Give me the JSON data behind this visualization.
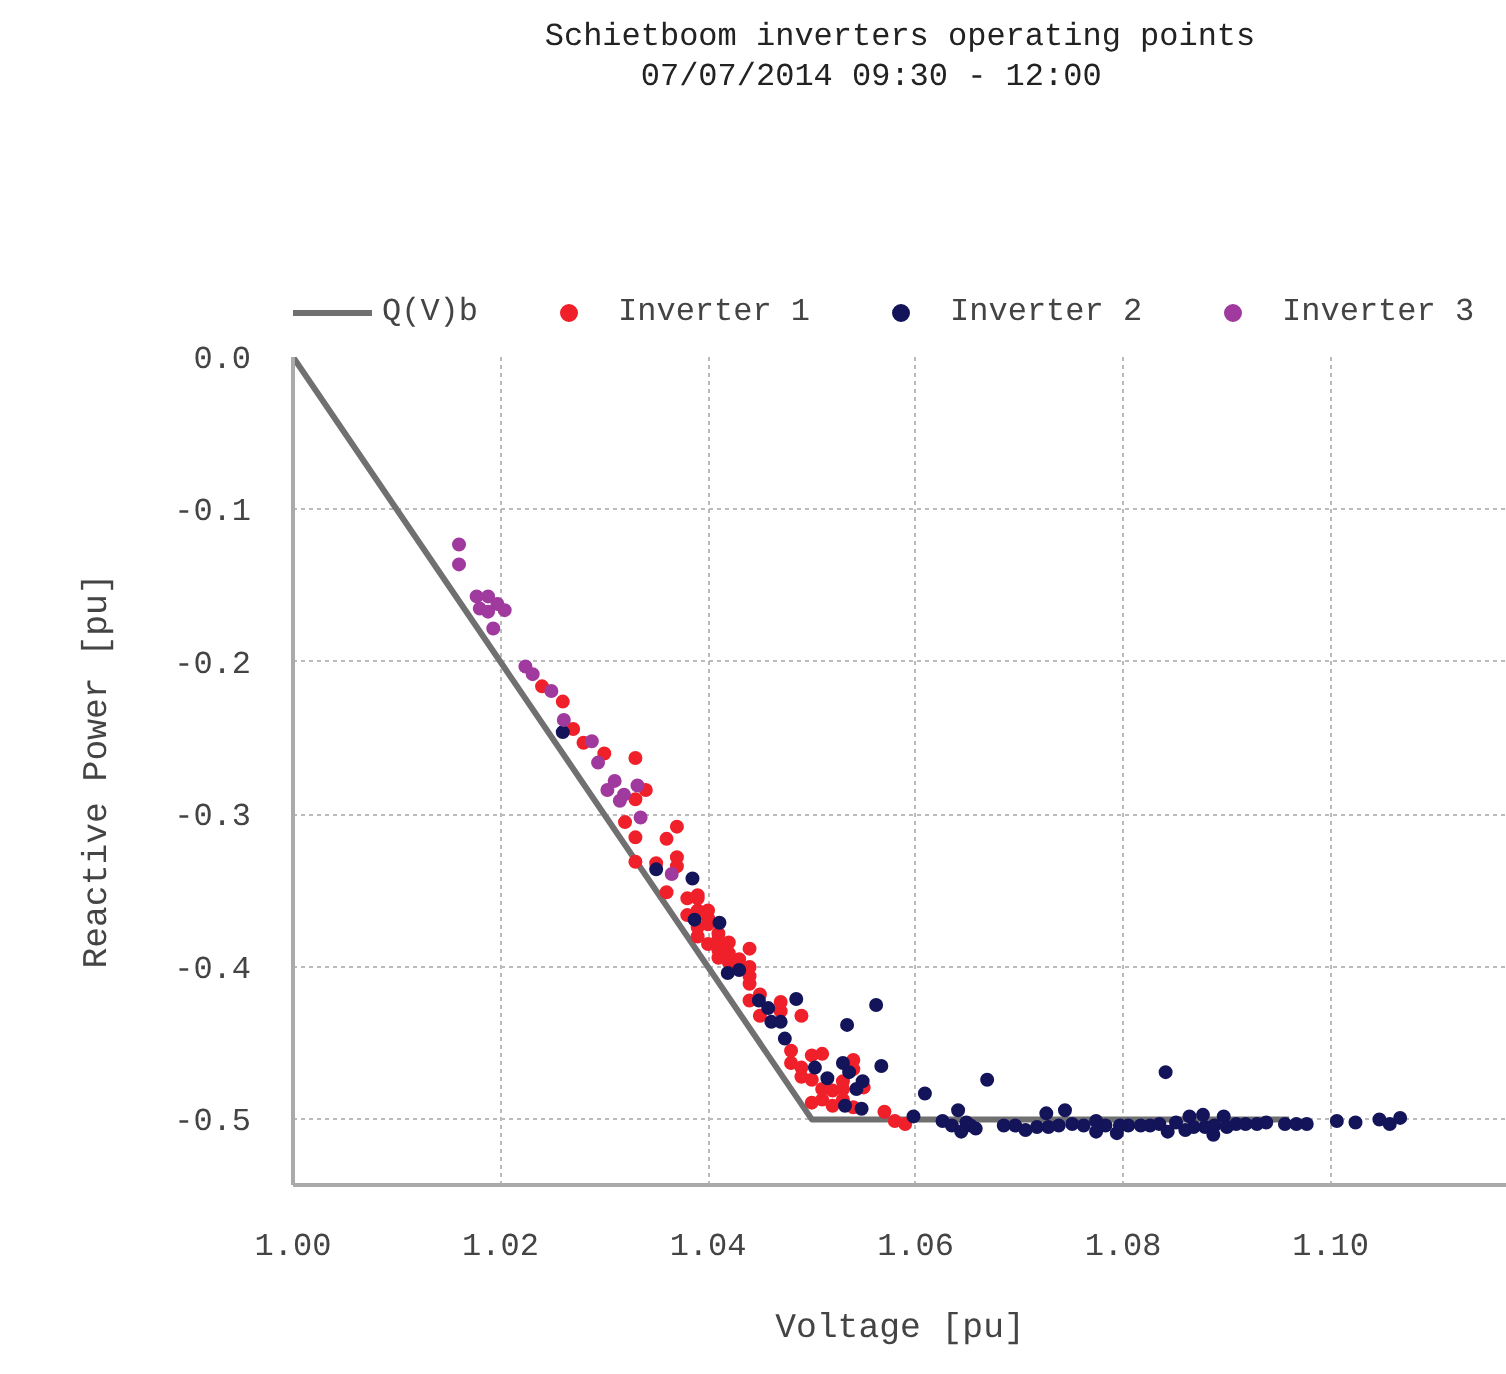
{
  "chart_data": {
    "type": "scatter",
    "title": "Schietboom inverters operating points",
    "subtitle": "07/07/2014    09:30 - 12:00",
    "xlabel": "Voltage [pu]",
    "ylabel": "Reactive Power [pu]",
    "xlim": [
      1.0,
      1.117
    ],
    "ylim": [
      -0.543,
      0.0
    ],
    "xticks": [
      {
        "value": 1.0,
        "label": "1.00"
      },
      {
        "value": 1.02,
        "label": "1.02"
      },
      {
        "value": 1.04,
        "label": "1.04"
      },
      {
        "value": 1.06,
        "label": "1.06"
      },
      {
        "value": 1.08,
        "label": "1.08"
      },
      {
        "value": 1.1,
        "label": "1.10"
      }
    ],
    "yticks": [
      {
        "value": 0.0,
        "label": "0.0"
      },
      -0.1,
      -0.2,
      -0.3,
      -0.4,
      -0.5
    ],
    "grid": true,
    "legend": "top",
    "marker": "circle",
    "series": [
      {
        "name": "Q(V)b",
        "type": "line",
        "color": "#707070",
        "marker": "none",
        "x": [
          1.0,
          1.05,
          1.096
        ],
        "values": [
          0.0,
          -0.5,
          -0.5
        ]
      },
      {
        "name": "Inverter 1",
        "color": "#f0202a",
        "x": [
          1.024,
          1.026,
          1.027,
          1.028,
          1.03,
          1.033,
          1.034,
          1.033,
          1.032,
          1.033,
          1.036,
          1.037,
          1.033,
          1.035,
          1.037,
          1.037,
          1.036,
          1.038,
          1.039,
          1.039,
          1.038,
          1.039,
          1.04,
          1.04,
          1.04,
          1.039,
          1.039,
          1.041,
          1.04,
          1.041,
          1.042,
          1.044,
          1.041,
          1.042,
          1.041,
          1.043,
          1.042,
          1.044,
          1.044,
          1.044,
          1.045,
          1.044,
          1.047,
          1.047,
          1.045,
          1.049,
          1.048,
          1.048,
          1.049,
          1.05,
          1.051,
          1.049,
          1.05,
          1.053,
          1.054,
          1.054,
          1.051,
          1.052,
          1.053,
          1.055,
          1.051,
          1.052,
          1.053,
          1.05,
          1.054,
          1.057,
          1.058,
          1.059
        ],
        "values": [
          -0.216,
          -0.226,
          -0.244,
          -0.253,
          -0.26,
          -0.263,
          -0.284,
          -0.29,
          -0.305,
          -0.315,
          -0.316,
          -0.308,
          -0.331,
          -0.332,
          -0.328,
          -0.334,
          -0.351,
          -0.355,
          -0.353,
          -0.355,
          -0.366,
          -0.363,
          -0.363,
          -0.368,
          -0.372,
          -0.374,
          -0.38,
          -0.378,
          -0.385,
          -0.382,
          -0.384,
          -0.388,
          -0.389,
          -0.391,
          -0.394,
          -0.395,
          -0.397,
          -0.4,
          -0.406,
          -0.411,
          -0.418,
          -0.422,
          -0.423,
          -0.429,
          -0.432,
          -0.432,
          -0.455,
          -0.463,
          -0.466,
          -0.458,
          -0.457,
          -0.472,
          -0.474,
          -0.475,
          -0.461,
          -0.467,
          -0.48,
          -0.481,
          -0.48,
          -0.479,
          -0.487,
          -0.491,
          -0.487,
          -0.489,
          -0.492,
          -0.495,
          -0.501,
          -0.503
        ]
      },
      {
        "name": "Inverter 2",
        "color": "#14145a",
        "x": [
          1.026,
          1.035,
          1.0385,
          1.0387,
          1.0411,
          1.0419,
          1.043,
          1.0449,
          1.0458,
          1.0461,
          1.047,
          1.0485,
          1.0474,
          1.0562,
          1.0534,
          1.053,
          1.0536,
          1.0515,
          1.0503,
          1.0549,
          1.0543,
          1.0567,
          1.0532,
          1.0548,
          1.0609,
          1.0598,
          1.0626,
          1.0635,
          1.0641,
          1.0669,
          1.0644,
          1.0649,
          1.0653,
          1.0658,
          1.0685,
          1.0696,
          1.0706,
          1.0717,
          1.0726,
          1.0728,
          1.0738,
          1.0744,
          1.0751,
          1.0762,
          1.0774,
          1.0774,
          1.0783,
          1.0794,
          1.0797,
          1.0805,
          1.0817,
          1.0826,
          1.0835,
          1.0841,
          1.0843,
          1.0851,
          1.086,
          1.0864,
          1.0868,
          1.0877,
          1.0879,
          1.0887,
          1.0888,
          1.0897,
          1.09,
          1.0909,
          1.0918,
          1.0929,
          1.0938,
          1.0956,
          1.0967,
          1.0977,
          1.1006,
          1.1024,
          1.1047,
          1.1057,
          1.1067
        ],
        "values": [
          -0.246,
          -0.336,
          -0.342,
          -0.369,
          -0.371,
          -0.404,
          -0.402,
          -0.422,
          -0.427,
          -0.436,
          -0.436,
          -0.421,
          -0.447,
          -0.425,
          -0.438,
          -0.463,
          -0.469,
          -0.473,
          -0.466,
          -0.475,
          -0.48,
          -0.465,
          -0.491,
          -0.493,
          -0.483,
          -0.498,
          -0.501,
          -0.504,
          -0.494,
          -0.474,
          -0.508,
          -0.502,
          -0.504,
          -0.506,
          -0.504,
          -0.504,
          -0.507,
          -0.505,
          -0.496,
          -0.505,
          -0.504,
          -0.494,
          -0.503,
          -0.504,
          -0.501,
          -0.508,
          -0.504,
          -0.509,
          -0.504,
          -0.504,
          -0.504,
          -0.504,
          -0.503,
          -0.469,
          -0.508,
          -0.502,
          -0.507,
          -0.498,
          -0.505,
          -0.497,
          -0.505,
          -0.51,
          -0.504,
          -0.498,
          -0.505,
          -0.503,
          -0.503,
          -0.503,
          -0.502,
          -0.503,
          -0.503,
          -0.503,
          -0.501,
          -0.502,
          -0.5,
          -0.503,
          -0.499
        ]
      },
      {
        "name": "Inverter 3",
        "color": "#a03a9e",
        "x": [
          1.016,
          1.016,
          1.0177,
          1.0188,
          1.018,
          1.0188,
          1.0197,
          1.0204,
          1.0193,
          1.0224,
          1.0231,
          1.0249,
          1.0261,
          1.0288,
          1.0294,
          1.031,
          1.0303,
          1.0319,
          1.0315,
          1.0332,
          1.0335,
          1.0365
        ],
        "values": [
          -0.123,
          -0.136,
          -0.157,
          -0.157,
          -0.165,
          -0.167,
          -0.162,
          -0.166,
          -0.178,
          -0.203,
          -0.208,
          -0.219,
          -0.238,
          -0.252,
          -0.266,
          -0.278,
          -0.284,
          -0.287,
          -0.291,
          -0.281,
          -0.302,
          -0.339
        ]
      }
    ]
  }
}
